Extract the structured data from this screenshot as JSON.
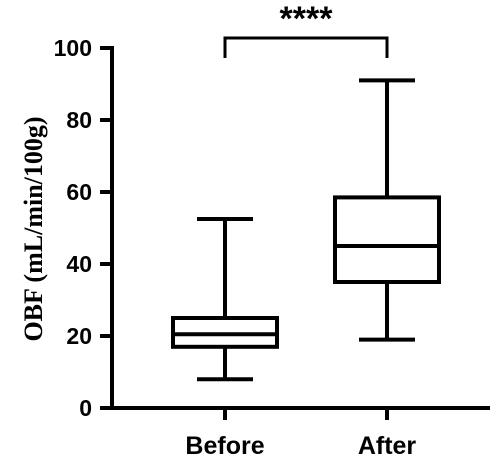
{
  "chart_data": {
    "type": "box",
    "ylabel": "OBF (mL/min/100g)",
    "ylim": [
      0,
      100
    ],
    "yticks": [
      "0",
      "20",
      "40",
      "60",
      "80",
      "100"
    ],
    "categories": [
      "Before",
      "After"
    ],
    "boxes": [
      {
        "category": "Before",
        "min": 8,
        "q1": 17,
        "median": 20.5,
        "q3": 25,
        "max": 52.5
      },
      {
        "category": "After",
        "min": 19,
        "q1": 35,
        "median": 45,
        "q3": 58.5,
        "max": 91
      }
    ],
    "significance": {
      "label": "****",
      "between": [
        "Before",
        "After"
      ]
    },
    "grid": false,
    "legend": "none",
    "colors": {
      "stroke": "#000000",
      "fill": "#ffffff"
    }
  }
}
